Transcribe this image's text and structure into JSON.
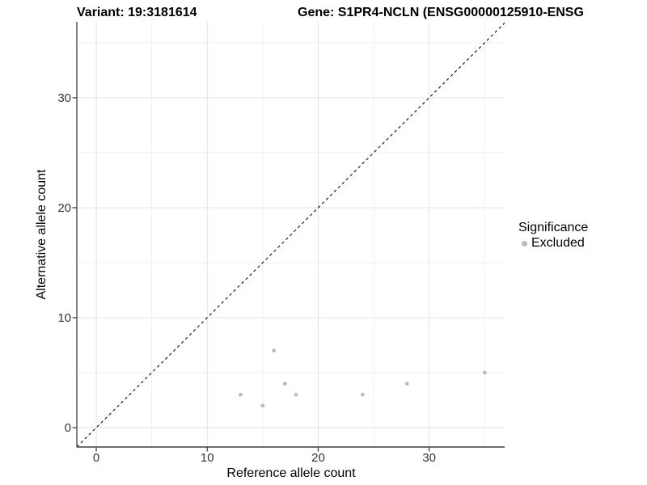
{
  "header": {
    "variant_label": "Variant: 19:3181614",
    "gene_label": "Gene: S1PR4-NCLN (ENSG00000125910-ENSG"
  },
  "legend": {
    "title": "Significance",
    "items": [
      {
        "label": "Excluded",
        "color": "#bdbdbd"
      }
    ]
  },
  "chart_data": {
    "type": "scatter",
    "title": "Variant: 19:3181614 — Gene: S1PR4-NCLN (ENSG00000125910-ENSG",
    "xlabel": "Reference allele count",
    "ylabel": "Alternative allele count",
    "xticks": [
      0,
      10,
      20,
      30
    ],
    "yticks": [
      0,
      10,
      20,
      30
    ],
    "minor_ticks_x": [
      5,
      15,
      25,
      35
    ],
    "minor_ticks_y": [
      5,
      15,
      25,
      35
    ],
    "xlim": [
      -1.75,
      36.8
    ],
    "ylim": [
      -1.76,
      36.9
    ],
    "grid": "major+minor",
    "legend_position": "right",
    "identity_line": {
      "style": "dashed",
      "from": [
        -1.75,
        -1.75
      ],
      "to": [
        36.8,
        36.8
      ]
    },
    "series": [
      {
        "name": "Excluded",
        "color": "#bdbdbd",
        "points": [
          {
            "x": 13,
            "y": 3
          },
          {
            "x": 15,
            "y": 2
          },
          {
            "x": 16,
            "y": 7
          },
          {
            "x": 17,
            "y": 4
          },
          {
            "x": 18,
            "y": 3
          },
          {
            "x": 24,
            "y": 3
          },
          {
            "x": 28,
            "y": 4
          },
          {
            "x": 35,
            "y": 5
          }
        ]
      }
    ],
    "colors": {
      "point": "#bdbdbd",
      "grid_major": "#e3e3e3",
      "grid_minor": "#f1f1f1",
      "axis_line": "#3f3f3f",
      "tick_mark": "#333333",
      "tick_text": "#333333",
      "label_text": "#000000",
      "identity_line": "#1a1a1a"
    }
  }
}
